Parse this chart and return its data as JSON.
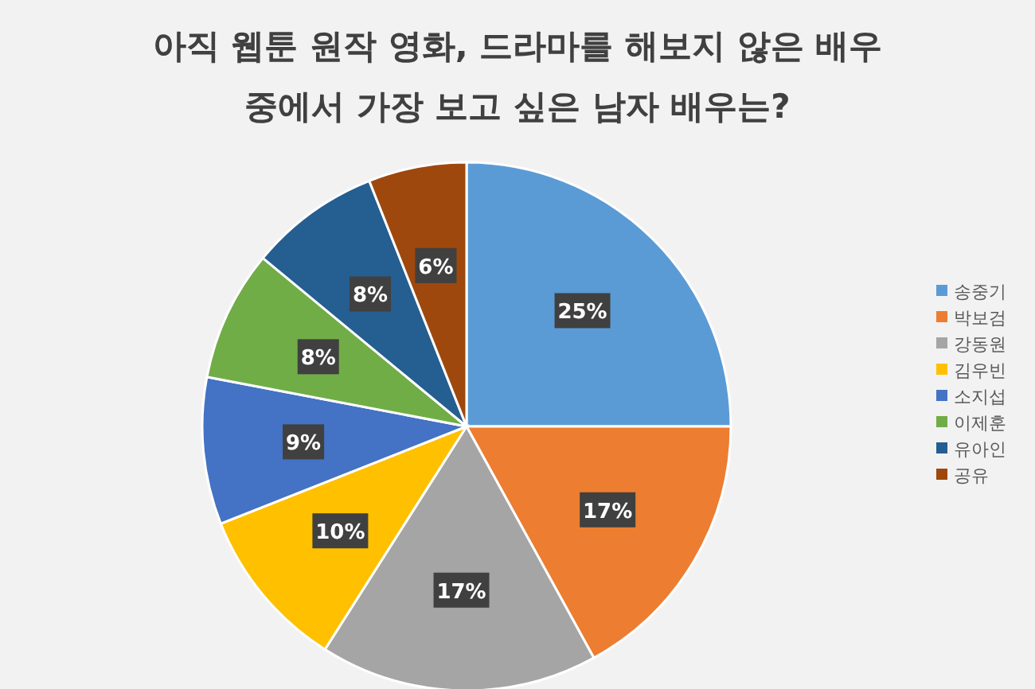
{
  "chart_data": {
    "type": "pie",
    "title": "아직 웹툰 원작 영화, 드라마를 해보지 않은 배우\n중에서 가장 보고 싶은 남자 배우는?",
    "categories": [
      "송중기",
      "박보검",
      "강동원",
      "김우빈",
      "소지섭",
      "이제훈",
      "유아인",
      "공유"
    ],
    "values": [
      25,
      17,
      17,
      10,
      9,
      8,
      8,
      6
    ],
    "colors": [
      "#5b9bd5",
      "#ed7d31",
      "#a5a5a5",
      "#ffc000",
      "#4472c4",
      "#70ad47",
      "#255e91",
      "#9e480e"
    ],
    "value_labels": [
      "25%",
      "17%",
      "17%",
      "10%",
      "9%",
      "8%",
      "8%",
      "6%"
    ],
    "legend": "right"
  }
}
